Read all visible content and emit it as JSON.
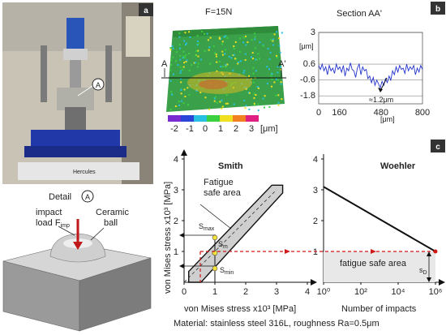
{
  "panels": {
    "a": {
      "label": "a",
      "detail_title": "Detail",
      "detail_marker": "A",
      "photo_marker": "A",
      "impact_label": "impact",
      "load_label": "load F",
      "load_sub": "imp",
      "ceramic_label": "Ceramic",
      "ball_label": "ball"
    },
    "b": {
      "label": "b",
      "force_label": "F=15N",
      "section_mark_left": "A",
      "section_mark_right": "A'",
      "colorbar_ticks": [
        "-2",
        "-1",
        "0",
        "1",
        "2",
        "3"
      ],
      "colorbar_unit": "[μm]",
      "colors": [
        "#7a2bd0",
        "#2a44d8",
        "#27c0e0",
        "#3bd040",
        "#f0e020",
        "#f08020",
        "#e02080"
      ],
      "section": {
        "title": "Section AA'",
        "y_unit": "[μm]",
        "x_unit": "[μm]",
        "y_ticks": [
          "3",
          "0.6",
          "-0.6",
          "-1.8"
        ],
        "x_ticks": [
          "0",
          "160",
          "480",
          "800"
        ],
        "depth_annotation": "≈1.2μm"
      }
    },
    "c": {
      "label": "c",
      "smith": {
        "title": "Smith",
        "area_label_1": "Fatigue",
        "area_label_2": "safe area",
        "ylabel": "von Mises stress x10³ [MPa]",
        "xlabel": "von Mises stress x10³ [MPa]",
        "x_ticks": [
          "0",
          "1",
          "2",
          "3",
          "4"
        ],
        "y_ticks": [
          "0",
          "1",
          "2",
          "3",
          "4"
        ],
        "s_max": "S",
        "s_max_sub": "max",
        "s_m": "S",
        "s_m_sub": "m",
        "s_min": "S",
        "s_min_sub": "min"
      },
      "woehler": {
        "title": "Woehler",
        "area_label": "fatigue safe area",
        "sd": "s",
        "sd_sub": "D",
        "xlabel": "Number of impacts",
        "x_ticks": [
          "10⁰",
          "10²",
          "10⁴",
          "10⁶"
        ]
      }
    }
  },
  "caption": "Material: stainless steel 316L, roughness Ra=0.5μm",
  "chart_data": [
    {
      "type": "line",
      "title": "Section AA'",
      "xlabel": "[μm]",
      "ylabel": "[μm]",
      "xlim": [
        0,
        800
      ],
      "ylim": [
        -2.4,
        3
      ],
      "profile": [
        0.5,
        0.2,
        0.6,
        0.1,
        0.4,
        -0.2,
        0.5,
        0.1,
        0.3,
        -0.1,
        0.6,
        0.2,
        0.4,
        0.0,
        0.5,
        -0.3,
        0.3,
        0.1,
        0.7,
        0.2,
        0.1,
        -0.4,
        0.3,
        0.6,
        -0.2,
        0.4,
        0.1,
        0.2,
        -0.5,
        -0.3,
        -0.8,
        -0.4,
        -1.0,
        -0.6,
        -0.9,
        -1.2,
        -0.7,
        -1.0,
        -0.5,
        -0.8,
        -0.3,
        -0.6,
        0.1,
        -0.2,
        0.4,
        0.0,
        0.5,
        0.2,
        0.3,
        -0.1,
        0.6,
        0.1,
        0.4,
        0.2,
        0.5,
        -0.2,
        0.3,
        0.0,
        0.5,
        0.2
      ]
    },
    {
      "type": "line",
      "title": "Smith",
      "xlim": [
        0,
        4
      ],
      "ylim": [
        0,
        4
      ],
      "points": [
        [
          1,
          1.45
        ],
        [
          1,
          0.95
        ],
        [
          1,
          0.45
        ]
      ]
    },
    {
      "type": "line",
      "title": "Woehler",
      "x": [
        0,
        6
      ],
      "y": [
        3.1,
        1.0
      ],
      "ylim": [
        0,
        4
      ]
    }
  ]
}
